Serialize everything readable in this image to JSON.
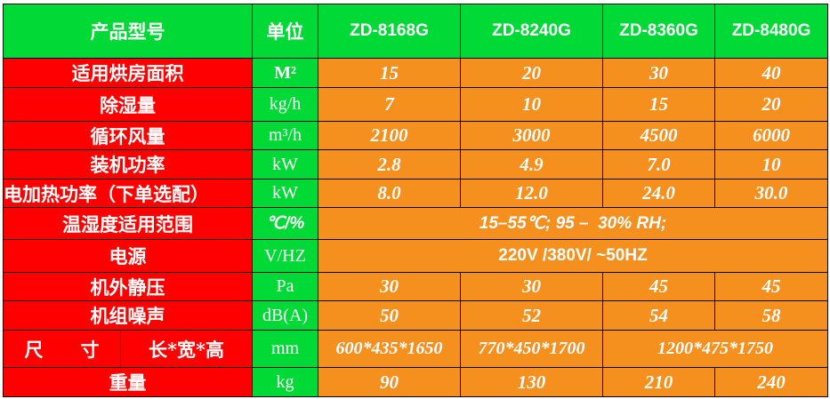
{
  "colors": {
    "header_bg": "#00d936",
    "label_bg": "#ff0000",
    "value_bg": "#f5901e",
    "text": "#ffffff"
  },
  "header": {
    "product_model": "产品型号",
    "unit": "单位",
    "models": [
      "ZD-8168G",
      "ZD-8240G",
      "ZD-8360G",
      "ZD-8480G"
    ]
  },
  "rows": [
    {
      "label": "适用烘房面积",
      "unit": "M²",
      "values": [
        "15",
        "20",
        "30",
        "40"
      ]
    },
    {
      "label": "除湿量",
      "unit": "kg/h",
      "values": [
        "7",
        "10",
        "15",
        "20"
      ]
    },
    {
      "label": "循环风量",
      "unit": "m³/h",
      "values": [
        "2100",
        "3000",
        "4500",
        "6000"
      ]
    },
    {
      "label": "装机功率",
      "unit": "kW",
      "values": [
        "2.8",
        "4.9",
        "7.0",
        "10"
      ]
    },
    {
      "label": "电加热功率（下单选配）",
      "unit": "kW",
      "values": [
        "8.0",
        "12.0",
        "24.0",
        "30.0"
      ]
    },
    {
      "label": "温湿度适用范围",
      "unit": "℃/%",
      "value": "15–55℃; 95 –  30% RH;"
    },
    {
      "label": "电源",
      "unit": "V/HZ",
      "value": "220V /380V/ ~50HZ"
    },
    {
      "label": "机外静压",
      "unit": "Pa",
      "values": [
        "30",
        "30",
        "45",
        "45"
      ]
    },
    {
      "label": "机组噪声",
      "unit": "dB(A)",
      "values": [
        "50",
        "52",
        "54",
        "58"
      ]
    },
    {
      "label": "尺　　寸",
      "sublabel": "长*宽*高",
      "unit": "mm",
      "values": [
        "600*435*1650",
        "770*450*1700",
        "1200*475*1750"
      ]
    },
    {
      "label": "重量",
      "unit": "kg",
      "values": [
        "90",
        "130",
        "210",
        "240"
      ]
    }
  ]
}
